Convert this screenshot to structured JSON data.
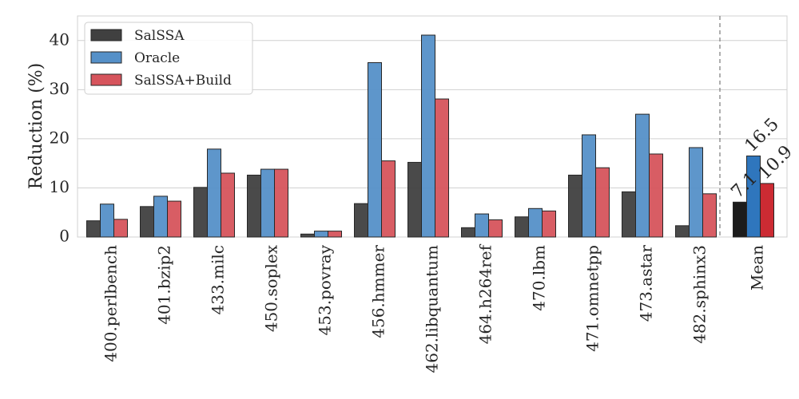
{
  "chart_data": {
    "type": "bar",
    "ylabel": "Reduction (%)",
    "ylim": [
      0,
      45
    ],
    "yticks": [
      0,
      10,
      20,
      30,
      40
    ],
    "grid": true,
    "legend_position": "top-left",
    "categories": [
      "400.perlbench",
      "401.bzip2",
      "433.milc",
      "450.soplex",
      "453.povray",
      "456.hmmer",
      "462.libquantum",
      "464.h264ref",
      "470.lbm",
      "471.omnetpp",
      "473.astar",
      "482.sphinx3",
      "Mean"
    ],
    "series": [
      {
        "name": "SalSSA",
        "color": "#404040",
        "mean_color": "#1c1c1c",
        "values": [
          3.3,
          6.2,
          10.1,
          12.6,
          0.6,
          6.8,
          15.2,
          1.9,
          4.1,
          12.6,
          9.2,
          2.3,
          7.1
        ]
      },
      {
        "name": "Oracle",
        "color": "#5590c8",
        "mean_color": "#2f76bd",
        "values": [
          6.7,
          8.3,
          17.9,
          13.8,
          1.2,
          35.5,
          41.1,
          4.7,
          5.8,
          20.8,
          25.0,
          18.2,
          16.5
        ]
      },
      {
        "name": "SalSSA+Build",
        "color": "#d6545c",
        "mean_color": "#cc2b33",
        "values": [
          3.6,
          7.3,
          13.0,
          13.8,
          1.2,
          15.5,
          28.1,
          3.5,
          5.3,
          14.1,
          16.9,
          8.8,
          10.9
        ]
      }
    ],
    "mean_labels": [
      "7.1",
      "16.5",
      "10.9"
    ]
  }
}
